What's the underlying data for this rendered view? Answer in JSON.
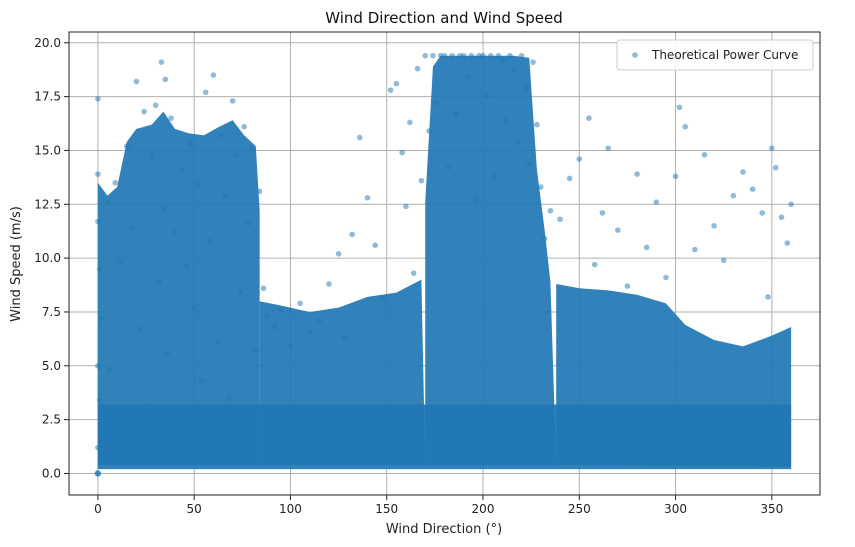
{
  "chart_data": {
    "type": "scatter",
    "title": "Wind Direction and Wind Speed",
    "xlabel": "Wind Direction (°)",
    "ylabel": "Wind Speed (m/s)",
    "xlim": [
      -15,
      375
    ],
    "ylim": [
      -1,
      20.5
    ],
    "xticks": [
      0,
      50,
      100,
      150,
      200,
      250,
      300,
      350
    ],
    "yticks": [
      0.0,
      2.5,
      5.0,
      7.5,
      10.0,
      12.5,
      15.0,
      17.5,
      20.0
    ],
    "xtick_labels": [
      "0",
      "50",
      "100",
      "150",
      "200",
      "250",
      "300",
      "350"
    ],
    "ytick_labels": [
      "0.0",
      "2.5",
      "5.0",
      "7.5",
      "10.0",
      "12.5",
      "15.0",
      "17.5",
      "20.0"
    ],
    "grid": true,
    "legend_position": "top-right",
    "point_color": "#1f77b4",
    "point_opacity": 0.5,
    "series": [
      {
        "name": "Theoretical Power Curve",
        "x": [
          0,
          0,
          0,
          0,
          0,
          0,
          1,
          1,
          2,
          3,
          5,
          6,
          9,
          12,
          15,
          18,
          20,
          22,
          24,
          27,
          28,
          30,
          32,
          33,
          34,
          35,
          36,
          38,
          40,
          42,
          44,
          46,
          48,
          50,
          52,
          54,
          56,
          58,
          60,
          62,
          64,
          66,
          68,
          70,
          72,
          74,
          76,
          78,
          80,
          82,
          84,
          86,
          88,
          92,
          95,
          100,
          105,
          110,
          115,
          120,
          125,
          128,
          132,
          136,
          140,
          144,
          148,
          152,
          155,
          158,
          160,
          162,
          164,
          166,
          168,
          170,
          172,
          174,
          176,
          178,
          180,
          182,
          184,
          186,
          188,
          190,
          192,
          194,
          196,
          198,
          200,
          202,
          204,
          206,
          208,
          210,
          212,
          214,
          216,
          218,
          220,
          222,
          224,
          226,
          228,
          230,
          232,
          235,
          240,
          245,
          250,
          255,
          258,
          262,
          265,
          270,
          275,
          280,
          285,
          290,
          295,
          300,
          302,
          305,
          310,
          315,
          320,
          325,
          330,
          335,
          340,
          345,
          348,
          350,
          352,
          355,
          358,
          360
        ],
        "y": [
          0,
          17.4,
          13.9,
          11.7,
          5.0,
          1.2,
          9.5,
          3.4,
          7.2,
          2.1,
          12.6,
          4.8,
          13.5,
          9.8,
          15.2,
          11.4,
          18.2,
          6.7,
          16.8,
          3.1,
          14.7,
          17.1,
          8.9,
          19.1,
          12.3,
          18.3,
          5.6,
          16.5,
          11.2,
          2.4,
          14.1,
          9.6,
          15.3,
          7.7,
          13.4,
          4.3,
          17.7,
          10.8,
          18.5,
          6.1,
          15.7,
          12.9,
          3.5,
          17.3,
          14.8,
          8.4,
          16.1,
          11.6,
          15.1,
          5.7,
          13.1,
          8.6,
          7.3,
          6.8,
          7.6,
          5.9,
          7.9,
          6.6,
          7.1,
          8.8,
          10.2,
          6.3,
          11.1,
          15.6,
          12.8,
          10.6,
          8.1,
          17.8,
          18.1,
          14.9,
          12.4,
          16.3,
          9.3,
          18.8,
          13.6,
          19.4,
          15.9,
          19.4,
          17.2,
          19.4,
          19.4,
          14.2,
          19.4,
          16.7,
          19.4,
          19.4,
          18.4,
          19.4,
          12.7,
          19.4,
          19.4,
          17.5,
          19.4,
          13.8,
          19.4,
          19.2,
          16.4,
          19.4,
          18.7,
          15.4,
          19.4,
          17.9,
          14.4,
          19.1,
          16.2,
          13.3,
          10.9,
          12.2,
          11.8,
          13.7,
          14.6,
          16.5,
          9.7,
          12.1,
          15.1,
          11.3,
          8.7,
          13.9,
          10.5,
          12.6,
          9.1,
          13.8,
          17.0,
          16.1,
          10.4,
          14.8,
          11.5,
          9.9,
          12.9,
          14.0,
          13.2,
          12.1,
          8.2,
          15.1,
          14.2,
          11.9,
          10.7,
          12.5
        ]
      }
    ]
  }
}
